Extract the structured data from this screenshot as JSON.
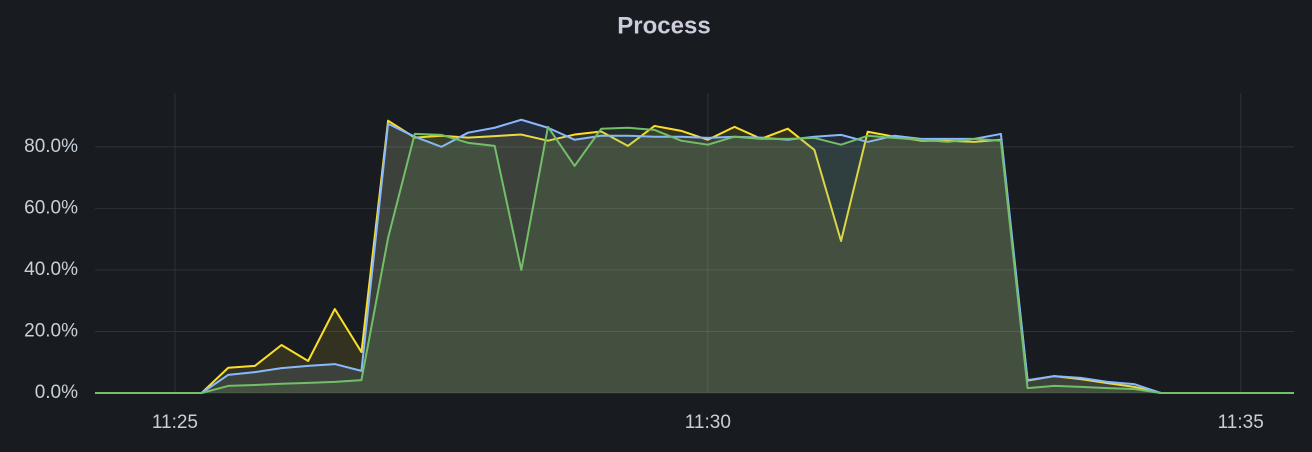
{
  "chart_data": {
    "type": "line",
    "title": "Process",
    "x": [
      24.25,
      24.5,
      24.75,
      25,
      25.25,
      25.5,
      25.75,
      26,
      26.25,
      26.5,
      26.75,
      27,
      27.25,
      27.5,
      27.75,
      28,
      28.25,
      28.5,
      28.75,
      29,
      29.25,
      29.5,
      29.75,
      30,
      30.25,
      30.5,
      30.75,
      31,
      31.25,
      31.5,
      31.75,
      32,
      32.25,
      32.5,
      32.75,
      33,
      33.25,
      33.5,
      33.75,
      34,
      34.25,
      34.5,
      34.75,
      35,
      35.25,
      35.5
    ],
    "series": [
      {
        "color": "#fade2a",
        "values": [
          0,
          0,
          0,
          0,
          0,
          8.2,
          8.8,
          15.6,
          10.4,
          27.3,
          13.3,
          88.5,
          83,
          83.6,
          83,
          83.5,
          84,
          82,
          84,
          85,
          80.3,
          86.8,
          85.2,
          82.3,
          86.5,
          82.6,
          85.9,
          79,
          49.4,
          84.9,
          83.3,
          82,
          82,
          81.6,
          82.3,
          4,
          5.5,
          4.5,
          3.2,
          2,
          0,
          0,
          0,
          0,
          0,
          0
        ]
      },
      {
        "color": "#8ab8ff",
        "values": [
          0,
          0,
          0,
          0,
          0,
          5.9,
          6.8,
          8.1,
          8.8,
          9.4,
          7.2,
          87.5,
          83.3,
          80,
          84.6,
          86.2,
          88.8,
          86.2,
          82.3,
          83.6,
          83.6,
          83.3,
          83.3,
          82.9,
          83.3,
          83,
          82.3,
          83.3,
          83.9,
          81.6,
          83.6,
          82.6,
          82.6,
          82.6,
          84.2,
          4.2,
          5.5,
          4.9,
          3.6,
          2.9,
          0,
          0,
          0,
          0,
          0,
          0
        ]
      },
      {
        "color": "#73bf69",
        "values": [
          0,
          0,
          0,
          0,
          0,
          2.3,
          2.6,
          3,
          3.3,
          3.6,
          4.2,
          50.4,
          84.2,
          83.9,
          81.3,
          80.3,
          40,
          86.5,
          73.8,
          85.9,
          86.2,
          85.5,
          82,
          80.7,
          83.3,
          82.6,
          82.6,
          82.9,
          80.7,
          83.6,
          82.9,
          82.3,
          81.6,
          82.6,
          82,
          1.6,
          2.3,
          2,
          1.6,
          1.3,
          0,
          0,
          0,
          0,
          0,
          0
        ]
      }
    ],
    "xlim": [
      24.25,
      35.5
    ],
    "xticks": [
      {
        "value": 25,
        "label": "11:25"
      },
      {
        "value": 30,
        "label": "11:30"
      },
      {
        "value": 35,
        "label": "11:35"
      }
    ],
    "ylim": [
      0,
      97.5
    ],
    "yticks": [
      {
        "value": 0,
        "label": "0.0%"
      },
      {
        "value": 20,
        "label": "20.0%"
      },
      {
        "value": 40,
        "label": "40.0%"
      },
      {
        "value": 60,
        "label": "60.0%"
      },
      {
        "value": 80,
        "label": "80.0%"
      }
    ],
    "grid": true
  }
}
